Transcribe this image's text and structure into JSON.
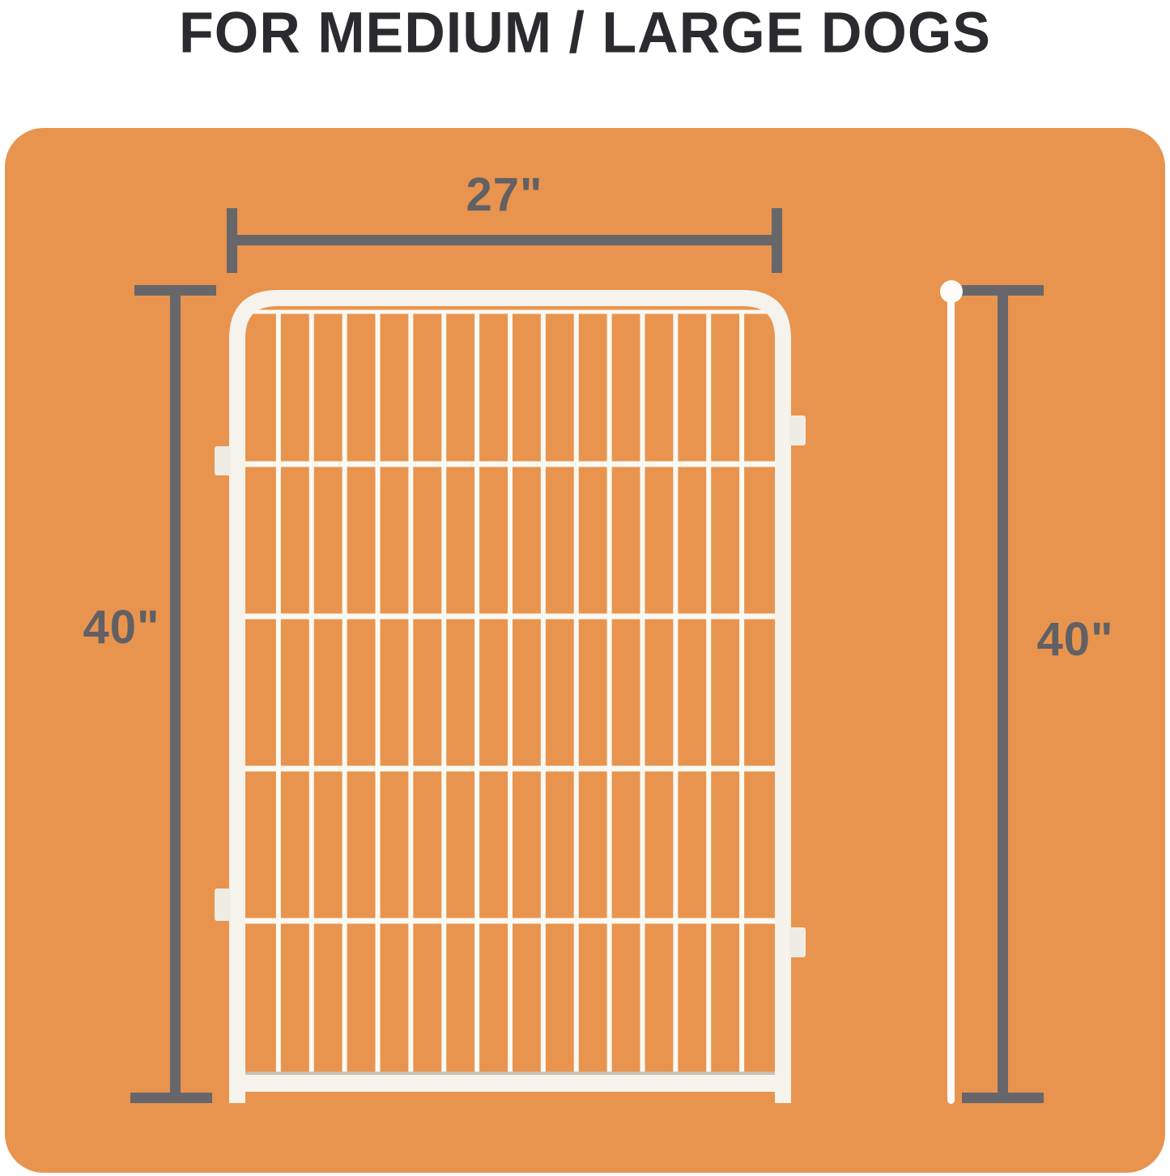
{
  "title": "FOR MEDIUM / LARGE DOGS",
  "dimensions": {
    "width_label": "27\"",
    "height_left_label": "40\"",
    "height_right_label": "40\""
  },
  "colors": {
    "page_background": "#FFFFFF",
    "card_orange": "#E8944E",
    "dimension_gray": "#67666A",
    "label_gray": "#616064",
    "title_dark": "#2B2B2F",
    "panel_frame_white": "#F5F3EC",
    "panel_bar_white": "#FAF9F3",
    "panel_tab_white": "#EFECE4",
    "panel_base_shadow": "#C4C4BA",
    "pin_white": "#FDFCF8"
  },
  "panel": {
    "name": "wire-pen-panel",
    "vertical_bar_count": 15,
    "horizontal_rail_count": 4,
    "connector_tab_count": 4
  },
  "icons": {
    "pin_head": "measure-pin-head",
    "pin_line": "measure-pin-line"
  }
}
